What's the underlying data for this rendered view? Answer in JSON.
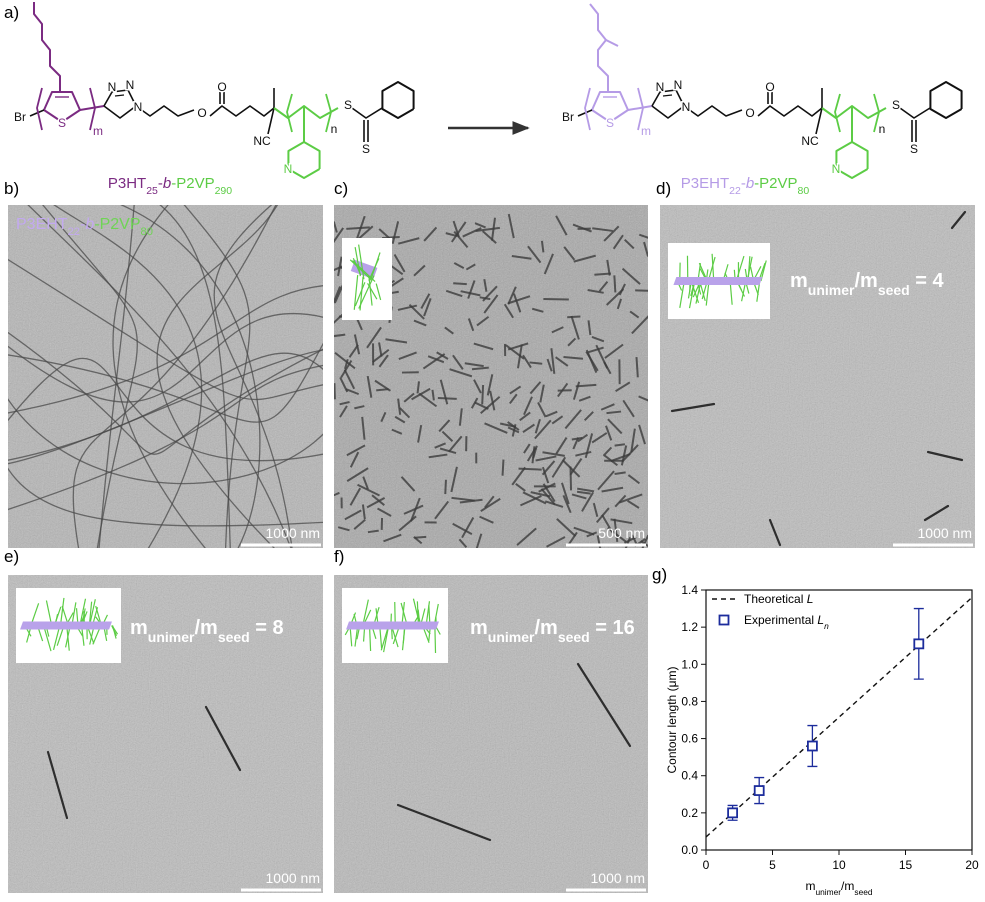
{
  "panel_a": {
    "label": "a)",
    "left": {
      "atoms": [
        "Br",
        "S",
        "m",
        "N",
        "N",
        "N",
        "O",
        "O",
        "NC",
        "n",
        "S",
        "S",
        "N"
      ],
      "caption": [
        {
          "text": "P3HT",
          "color": "#7b2b82"
        },
        {
          "text": "25",
          "color": "#7b2b82",
          "sub": true
        },
        {
          "text": "-",
          "color": "#7b2b82"
        },
        {
          "text": "b",
          "color": "#7b2b82",
          "italic": true
        },
        {
          "text": "-P2VP",
          "color": "#5ccc45"
        },
        {
          "text": "290",
          "color": "#5ccc45",
          "sub": true
        }
      ]
    },
    "right": {
      "atoms": [
        "Br",
        "S",
        "m",
        "N",
        "N",
        "N",
        "O",
        "O",
        "NC",
        "n",
        "S",
        "S",
        "N"
      ],
      "caption": [
        {
          "text": "P3EHT",
          "color": "#b59be6"
        },
        {
          "text": "22",
          "color": "#b59be6",
          "sub": true
        },
        {
          "text": "-",
          "color": "#b59be6"
        },
        {
          "text": "b",
          "color": "#b59be6",
          "italic": true
        },
        {
          "text": "-P2VP",
          "color": "#5ccc45"
        },
        {
          "text": "80",
          "color": "#5ccc45",
          "sub": true
        }
      ]
    }
  },
  "tem_panels": [
    {
      "label": "b)",
      "scale_bar": "1000 nm",
      "overlay": [
        {
          "text": "P3EHT",
          "color": "#c3a9f0"
        },
        {
          "text": "22",
          "color": "#c3a9f0",
          "sub": true
        },
        {
          "text": "-",
          "color": "#c3a9f0"
        },
        {
          "text": "b",
          "color": "#c3a9f0",
          "italic": true
        },
        {
          "text": "-P2VP",
          "color": "#6fd455"
        },
        {
          "text": "80",
          "color": "#6fd455",
          "sub": true
        }
      ]
    },
    {
      "label": "c)",
      "scale_bar": "500 nm"
    },
    {
      "label": "d)",
      "scale_bar": "1000 nm",
      "ratio": [
        {
          "text": "m"
        },
        {
          "text": "unimer",
          "sub": true
        },
        {
          "text": "/m"
        },
        {
          "text": "seed",
          "sub": true
        },
        {
          "text": " = 4"
        }
      ]
    },
    {
      "label": "e)",
      "scale_bar": "1000 nm",
      "ratio": [
        {
          "text": "m"
        },
        {
          "text": "unimer",
          "sub": true
        },
        {
          "text": "/m"
        },
        {
          "text": "seed",
          "sub": true
        },
        {
          "text": " = 8"
        }
      ]
    },
    {
      "label": "f)",
      "scale_bar": "1000 nm",
      "ratio": [
        {
          "text": "m"
        },
        {
          "text": "unimer",
          "sub": true
        },
        {
          "text": "/m"
        },
        {
          "text": "seed",
          "sub": true
        },
        {
          "text": " = 16"
        }
      ]
    }
  ],
  "chart_label": "g)",
  "chart_data": {
    "type": "scatter",
    "xlabel": [
      {
        "text": "m"
      },
      {
        "text": "unimer",
        "sub": true
      },
      {
        "text": "/m"
      },
      {
        "text": "seed",
        "sub": true
      }
    ],
    "ylabel": "Contour length (μm)",
    "xlim": [
      0,
      20
    ],
    "ylim": [
      0,
      1.4
    ],
    "xticks": [
      0,
      5,
      10,
      15,
      20
    ],
    "yticks": [
      {
        "value": 0,
        "label": "0.0"
      },
      {
        "value": 0.2,
        "label": "0.2"
      },
      {
        "value": 0.4,
        "label": "0.4"
      },
      {
        "value": 0.6,
        "label": "0.6"
      },
      {
        "value": 0.8,
        "label": "0.8"
      },
      {
        "value": 1.0,
        "label": "1.0"
      },
      {
        "value": 1.2,
        "label": "1.2"
      },
      {
        "value": 1.4,
        "label": "1.4"
      }
    ],
    "legend": "top-left",
    "series": [
      {
        "name": [
          {
            "text": "Theoretical "
          },
          {
            "text": "L",
            "italic": true
          }
        ],
        "kind": "line",
        "dash": true,
        "color": "#111111",
        "x": [
          0,
          20
        ],
        "values": [
          0.07,
          1.36
        ]
      },
      {
        "name": [
          {
            "text": "Experimental "
          },
          {
            "text": "L",
            "italic": true
          },
          {
            "text": "n",
            "italic": true,
            "sub": true
          }
        ],
        "kind": "scatter",
        "marker": "square-open",
        "color": "#1c2c9c",
        "x": [
          2,
          4,
          8,
          16
        ],
        "values": [
          0.2,
          0.32,
          0.56,
          1.11
        ],
        "errors": [
          0.04,
          0.07,
          0.11,
          0.19
        ]
      }
    ]
  }
}
